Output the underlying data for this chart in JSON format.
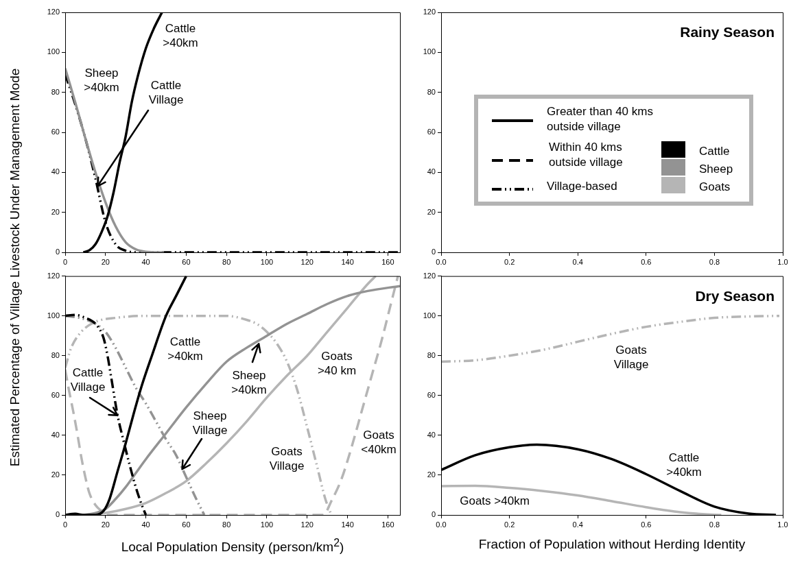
{
  "chart_data": [
    {
      "type": "line",
      "ylabel": "Estimated Percentage of Village Livestock Under Management Mode",
      "xlim": [
        0,
        166
      ],
      "xticks": [
        0,
        20,
        40,
        60,
        80,
        100,
        120,
        140,
        160
      ],
      "ylim": [
        0,
        120
      ],
      "yticks": [
        0,
        20,
        40,
        60,
        80,
        100,
        120
      ],
      "marker": "none",
      "series": [
        {
          "color": "#000000",
          "line_style": "solid",
          "x": [
            9,
            12,
            15,
            18,
            21,
            24,
            27,
            30,
            33,
            36,
            40,
            44,
            48
          ],
          "values": [
            0,
            1,
            4,
            10,
            18,
            30,
            45,
            58,
            75,
            88,
            102,
            112,
            120
          ]
        },
        {
          "color": "#939393",
          "line_style": "solid",
          "x": [
            0,
            5,
            10,
            15,
            20,
            25,
            30,
            35,
            40,
            49
          ],
          "values": [
            92,
            75,
            57,
            40,
            25,
            13,
            5,
            1.5,
            0.3,
            0
          ]
        },
        {
          "color": "#000000",
          "line_style": "dashdotdot",
          "x": [
            0,
            5,
            10,
            15,
            20,
            25,
            30,
            36,
            166
          ],
          "values": [
            89,
            74,
            57,
            37,
            15,
            4,
            0.8,
            0,
            0
          ]
        }
      ],
      "annotations": [
        "Cattle\n>40km",
        "Sheep\n>40km",
        {
          "text": "Cattle\nVillage",
          "x": 16,
          "y": 33
        }
      ]
    },
    {
      "type": "line",
      "title": "Rainy Season",
      "xlim": [
        0,
        1
      ],
      "xticks": [
        {
          "value": 0,
          "label": "0.0"
        },
        {
          "value": 0.2,
          "label": "0.2"
        },
        {
          "value": 0.4,
          "label": "0.4"
        },
        {
          "value": 0.6,
          "label": "0.6"
        },
        {
          "value": 0.8,
          "label": "0.8"
        },
        {
          "value": 1,
          "label": "1.0"
        }
      ],
      "ylim": [
        0,
        120
      ],
      "yticks": [
        0,
        20,
        40,
        60,
        80,
        100,
        120
      ],
      "annotations": [
        "Greater than 40 kms\noutside village",
        "Within 40 kms\noutside village",
        "Village-based",
        "Cattle",
        "Sheep",
        "Goats"
      ]
    },
    {
      "type": "line",
      "xlabel": "Local Population Density (person/km$^{2}$)",
      "xlim": [
        0,
        166
      ],
      "xticks": [
        0,
        20,
        40,
        60,
        80,
        100,
        120,
        140,
        160
      ],
      "ylim": [
        0,
        120
      ],
      "yticks": [
        0,
        20,
        40,
        60,
        80,
        100,
        120
      ],
      "marker": "none",
      "series": [
        {
          "color": "#000000",
          "line_style": "solid",
          "x": [
            0,
            5,
            9,
            15,
            19,
            22,
            26,
            30,
            34,
            38,
            43,
            50,
            55,
            60
          ],
          "values": [
            0,
            0.6,
            0,
            0,
            2,
            8,
            22,
            36,
            51,
            65,
            80,
            100,
            110,
            120
          ]
        },
        {
          "color": "#000000",
          "line_style": "dashdotdot",
          "x": [
            0,
            5,
            10,
            15,
            19,
            21,
            23,
            26,
            29,
            32,
            35,
            38,
            40
          ],
          "values": [
            100,
            100.5,
            99,
            96,
            89,
            80,
            68,
            50,
            37,
            25,
            14,
            5,
            0
          ]
        },
        {
          "color": "#939393",
          "line_style": "solid",
          "x": [
            9,
            15,
            20,
            25,
            30,
            35,
            40,
            50,
            60,
            70,
            80,
            90,
            100,
            110,
            120,
            130,
            140,
            150,
            166
          ],
          "values": [
            0,
            1,
            3,
            8,
            14,
            21,
            28,
            41,
            54,
            66,
            77,
            84,
            90,
            96,
            101,
            106,
            110,
            112.5,
            115
          ]
        },
        {
          "color": "#939393",
          "line_style": "dashdotdot",
          "x": [
            0,
            7,
            15,
            20,
            25,
            30,
            35,
            40,
            45,
            50,
            55,
            60,
            65,
            69
          ],
          "values": [
            100,
            99,
            96,
            92,
            84,
            74,
            64,
            56,
            47,
            38,
            30,
            19,
            8,
            0
          ]
        },
        {
          "color": "#b5b5b5",
          "line_style": "dashed",
          "x": [
            0,
            2,
            4,
            6,
            8,
            10,
            12,
            15,
            18,
            21,
            128,
            132,
            137,
            142,
            147,
            152,
            157,
            161,
            165
          ],
          "values": [
            73,
            62,
            52,
            41,
            29,
            19,
            11,
            5,
            2,
            0,
            0,
            7,
            18,
            34,
            52,
            70,
            88,
            104,
            120
          ]
        },
        {
          "color": "#b5b5b5",
          "line_style": "dashdotdot",
          "x": [
            0,
            3,
            8,
            15,
            25,
            40,
            60,
            80,
            90,
            95,
            100,
            105,
            110,
            115,
            120,
            125,
            129,
            132
          ],
          "values": [
            74,
            84,
            92,
            97,
            99,
            100,
            100,
            100,
            98,
            96,
            92,
            86,
            77,
            63,
            44,
            24,
            8,
            0
          ]
        },
        {
          "color": "#b5b5b5",
          "line_style": "solid",
          "x": [
            9,
            20,
            30,
            40,
            50,
            60,
            70,
            80,
            90,
            100,
            110,
            120,
            130,
            140,
            150,
            154
          ],
          "values": [
            0,
            1,
            3,
            6,
            11,
            17,
            26,
            36,
            47,
            59,
            70,
            80,
            92,
            104,
            116,
            120
          ]
        }
      ],
      "annotations": [
        "Cattle\n>40km",
        {
          "text": "Cattle\nVillage",
          "x": 26,
          "y": 50
        },
        {
          "text": "Sheep\n>40km",
          "x": 96,
          "y": 86
        },
        {
          "text": "Sheep\nVillage",
          "x": 58,
          "y": 23
        },
        "Goats\n>40 km",
        "Goats\nVillage",
        "Goats\n<40km"
      ]
    },
    {
      "type": "line",
      "title": "Dry Season",
      "xlabel": "Fraction of Population without Herding Identity",
      "xlim": [
        0,
        1
      ],
      "xticks": [
        {
          "value": 0,
          "label": "0.0"
        },
        {
          "value": 0.2,
          "label": "0.2"
        },
        {
          "value": 0.4,
          "label": "0.4"
        },
        {
          "value": 0.6,
          "label": "0.6"
        },
        {
          "value": 0.8,
          "label": "0.8"
        },
        {
          "value": 1,
          "label": "1.0"
        }
      ],
      "ylim": [
        0,
        120
      ],
      "yticks": [
        0,
        20,
        40,
        60,
        80,
        100,
        120
      ],
      "marker": "none",
      "series": [
        {
          "color": "#b5b5b5",
          "line_style": "dashdotdot",
          "x": [
            0,
            0.1,
            0.2,
            0.3,
            0.4,
            0.5,
            0.6,
            0.7,
            0.8,
            0.9,
            0.99
          ],
          "values": [
            77,
            77.7,
            80,
            83,
            87,
            91,
            94.5,
            97,
            99,
            99.7,
            100
          ]
        },
        {
          "color": "#000000",
          "line_style": "solid",
          "x": [
            0,
            0.1,
            0.2,
            0.28,
            0.4,
            0.5,
            0.6,
            0.7,
            0.8,
            0.9,
            0.98
          ],
          "values": [
            22.6,
            30,
            34,
            35.3,
            33,
            28,
            20.5,
            12,
            4.2,
            0.7,
            0
          ]
        },
        {
          "color": "#b5b5b5",
          "line_style": "solid",
          "x": [
            0,
            0.1,
            0.2,
            0.3,
            0.4,
            0.5,
            0.6,
            0.7,
            0.8,
            0.82
          ],
          "values": [
            14.5,
            14.6,
            13.6,
            12,
            9.8,
            6.9,
            3.9,
            1.4,
            0.1,
            0
          ]
        }
      ],
      "annotations": [
        "Goats\nVillage",
        "Cattle\n>40km",
        "Goats >40km"
      ]
    }
  ]
}
